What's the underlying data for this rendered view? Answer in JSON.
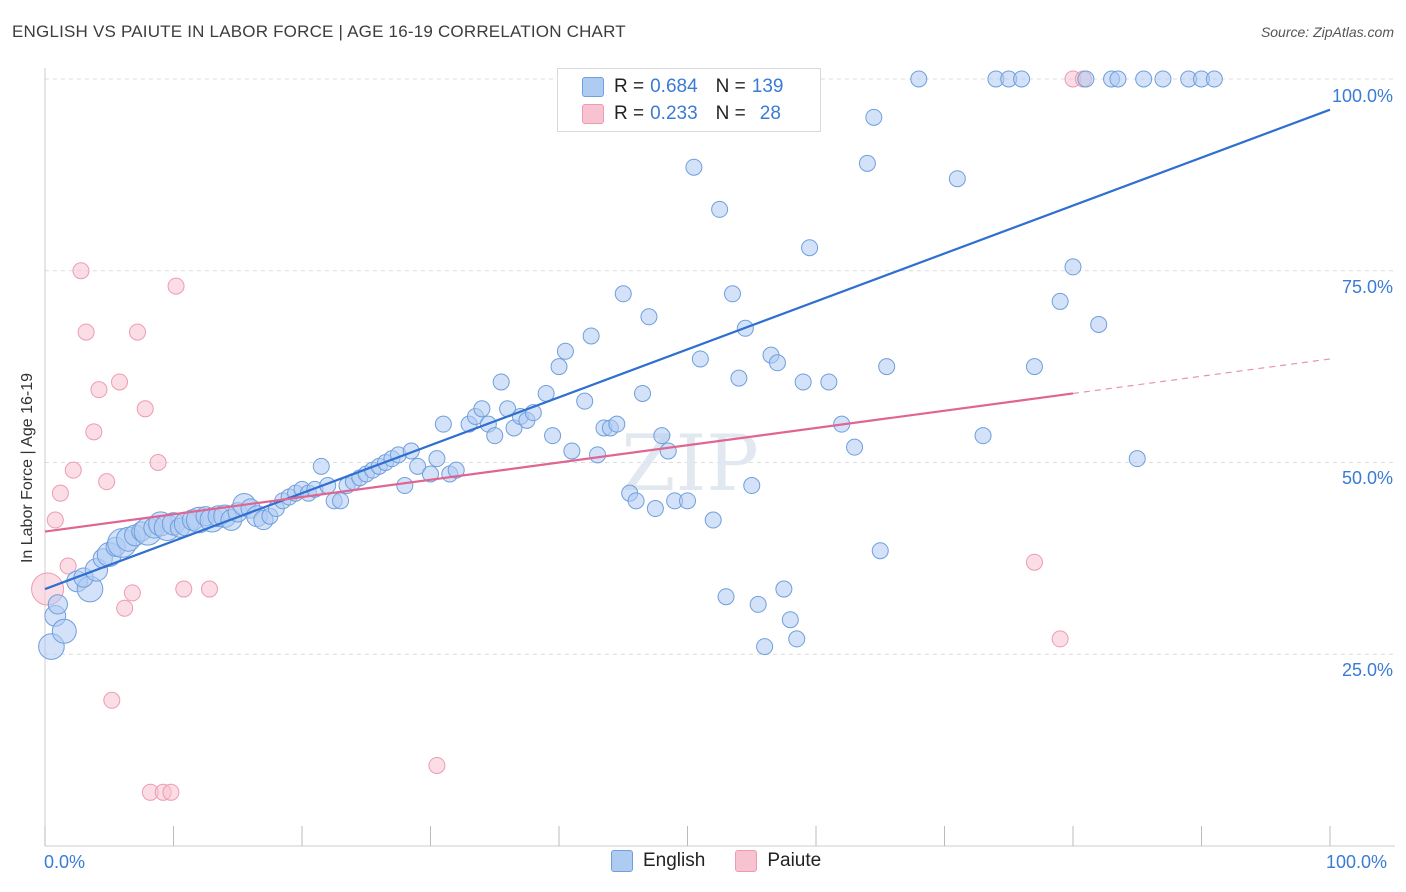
{
  "title": "ENGLISH VS PAIUTE IN LABOR FORCE | AGE 16-19 CORRELATION CHART",
  "source": "Source: ZipAtlas.com",
  "watermark": "ZIPatlas",
  "legend": {
    "rows": [
      {
        "series": "English",
        "r_label": "R =",
        "r": "0.684",
        "n_label": "N =",
        "n": "139"
      },
      {
        "series": "Paiute",
        "r_label": "R =",
        "r": "0.233",
        "n_label": "N =",
        "n": "28"
      }
    ]
  },
  "colors": {
    "english_fill": "#aecbf2",
    "english_stroke": "#6f9fdc",
    "english_line": "#2f6fd0",
    "paiute_fill": "#f8c3d0",
    "paiute_stroke": "#ee9bb2",
    "paiute_line": "#e06592",
    "accent_text": "#3a7bd5"
  },
  "chart_data": {
    "type": "scatter",
    "title": "ENGLISH VS PAIUTE IN LABOR FORCE | AGE 16-19 CORRELATION CHART",
    "xlabel": "",
    "ylabel": "In Labor Force | Age 16-19",
    "xlim": [
      0,
      100
    ],
    "ylim": [
      0,
      100
    ],
    "x_tick_labels": [
      "0.0%",
      "100.0%"
    ],
    "y_tick_labels": [
      "25.0%",
      "50.0%",
      "75.0%",
      "100.0%"
    ],
    "y_ticks": [
      25,
      50,
      75,
      100
    ],
    "grid": true,
    "series": [
      {
        "name": "English",
        "r": 0.684,
        "n": 139,
        "trend": {
          "x0": 0,
          "y0": 33.5,
          "x1": 100,
          "y1": 96
        },
        "points": [
          [
            0.5,
            26,
            1.6
          ],
          [
            0.8,
            30,
            1.3
          ],
          [
            1,
            31.5,
            1.2
          ],
          [
            1.5,
            28,
            1.5
          ],
          [
            2.5,
            34.5,
            1.3
          ],
          [
            3.5,
            33.5,
            1.6
          ],
          [
            3,
            35,
            1.2
          ],
          [
            4,
            36,
            1.4
          ],
          [
            4.5,
            37.5,
            1.2
          ],
          [
            5,
            38,
            1.5
          ],
          [
            5.5,
            39,
            1.2
          ],
          [
            6,
            39.5,
            1.8
          ],
          [
            6.5,
            40,
            1.5
          ],
          [
            7,
            40.5,
            1.3
          ],
          [
            7.5,
            41,
            1.2
          ],
          [
            8,
            41,
            1.7
          ],
          [
            8.5,
            41.5,
            1.3
          ],
          [
            9,
            42,
            1.5
          ],
          [
            9.5,
            41.5,
            1.6
          ],
          [
            10,
            42,
            1.4
          ],
          [
            10.5,
            41.5,
            1.2
          ],
          [
            11,
            42,
            1.5
          ],
          [
            11.5,
            42.5,
            1.3
          ],
          [
            12,
            42.5,
            1.6
          ],
          [
            12.5,
            43,
            1.2
          ],
          [
            13,
            42.5,
            1.5
          ],
          [
            13.5,
            43,
            1.3
          ],
          [
            14,
            43,
            1.4
          ],
          [
            14.5,
            42.5,
            1.3
          ],
          [
            15,
            43.5,
            1.2
          ],
          [
            15.5,
            44.5,
            1.4
          ],
          [
            16,
            44,
            1.2
          ],
          [
            16.5,
            43,
            1.3
          ],
          [
            17,
            42.5,
            1.2
          ],
          [
            17.5,
            43,
            1
          ],
          [
            18,
            44,
            1
          ],
          [
            18.5,
            45,
            1
          ],
          [
            19,
            45.5,
            1
          ],
          [
            19.5,
            46,
            1
          ],
          [
            20,
            46.5,
            1
          ],
          [
            20.5,
            46,
            1
          ],
          [
            21,
            46.5,
            1
          ],
          [
            21.5,
            49.5,
            1
          ],
          [
            22,
            47,
            1
          ],
          [
            22.5,
            45,
            1
          ],
          [
            23,
            45,
            1
          ],
          [
            23.5,
            47,
            1
          ],
          [
            24,
            47.5,
            1
          ],
          [
            24.5,
            48,
            1
          ],
          [
            25,
            48.5,
            1
          ],
          [
            25.5,
            49,
            1
          ],
          [
            26,
            49.5,
            1
          ],
          [
            26.5,
            50,
            1
          ],
          [
            27,
            50.5,
            1
          ],
          [
            27.5,
            51,
            1
          ],
          [
            28,
            47,
            1
          ],
          [
            28.5,
            51.5,
            1
          ],
          [
            29,
            49.5,
            1
          ],
          [
            30,
            48.5,
            1
          ],
          [
            30.5,
            50.5,
            1
          ],
          [
            31,
            55,
            1
          ],
          [
            31.5,
            48.5,
            1
          ],
          [
            32,
            49,
            1
          ],
          [
            33,
            55,
            1
          ],
          [
            33.5,
            56,
            1
          ],
          [
            34,
            57,
            1
          ],
          [
            34.5,
            55,
            1
          ],
          [
            35,
            53.5,
            1
          ],
          [
            35.5,
            60.5,
            1
          ],
          [
            36,
            57,
            1
          ],
          [
            36.5,
            54.5,
            1
          ],
          [
            37,
            56,
            1
          ],
          [
            37.5,
            55.5,
            1
          ],
          [
            38,
            56.5,
            1
          ],
          [
            39,
            59,
            1
          ],
          [
            39.5,
            53.5,
            1
          ],
          [
            40,
            62.5,
            1
          ],
          [
            40.5,
            64.5,
            1
          ],
          [
            41,
            51.5,
            1
          ],
          [
            42,
            58,
            1
          ],
          [
            42.5,
            66.5,
            1
          ],
          [
            43,
            51,
            1
          ],
          [
            43.5,
            54.5,
            1
          ],
          [
            44,
            54.5,
            1
          ],
          [
            44.5,
            55,
            1
          ],
          [
            45,
            72,
            1
          ],
          [
            45.5,
            46,
            1
          ],
          [
            46,
            45,
            1
          ],
          [
            46.5,
            59,
            1
          ],
          [
            47,
            69,
            1
          ],
          [
            47.5,
            44,
            1
          ],
          [
            48,
            53.5,
            1
          ],
          [
            48.5,
            51.5,
            1
          ],
          [
            49,
            45,
            1
          ],
          [
            50,
            45,
            1
          ],
          [
            50.5,
            88.5,
            1
          ],
          [
            51,
            63.5,
            1
          ],
          [
            52,
            42.5,
            1
          ],
          [
            52.5,
            83,
            1
          ],
          [
            53,
            32.5,
            1
          ],
          [
            53.5,
            72,
            1
          ],
          [
            54,
            61,
            1
          ],
          [
            54.5,
            67.5,
            1
          ],
          [
            55,
            47,
            1
          ],
          [
            55.5,
            31.5,
            1
          ],
          [
            56,
            26,
            1
          ],
          [
            56.5,
            64,
            1
          ],
          [
            57,
            63,
            1
          ],
          [
            57.5,
            33.5,
            1
          ],
          [
            58,
            29.5,
            1
          ],
          [
            58.5,
            27,
            1
          ],
          [
            59,
            60.5,
            1
          ],
          [
            59.5,
            78,
            1
          ],
          [
            61,
            60.5,
            1
          ],
          [
            62,
            55,
            1
          ],
          [
            63,
            52,
            1
          ],
          [
            64,
            89,
            1
          ],
          [
            64.5,
            95,
            1
          ],
          [
            65,
            38.5,
            1
          ],
          [
            65.5,
            62.5,
            1
          ],
          [
            68,
            100,
            1
          ],
          [
            71,
            87,
            1
          ],
          [
            73,
            53.5,
            1
          ],
          [
            74,
            100,
            1
          ],
          [
            75,
            100,
            1
          ],
          [
            76,
            100,
            1
          ],
          [
            77,
            62.5,
            1
          ],
          [
            79,
            71,
            1
          ],
          [
            80,
            75.5,
            1
          ],
          [
            81,
            100,
            1
          ],
          [
            82,
            68,
            1
          ],
          [
            83,
            100,
            1
          ],
          [
            83.5,
            100,
            1
          ],
          [
            85,
            50.5,
            1
          ],
          [
            85.5,
            100,
            1
          ],
          [
            87,
            100,
            1
          ],
          [
            89,
            100,
            1
          ],
          [
            90,
            100,
            1
          ],
          [
            91,
            100,
            1
          ]
        ]
      },
      {
        "name": "Paiute",
        "r": 0.233,
        "n": 28,
        "trend": {
          "x0": 0,
          "y0": 41,
          "x1": 80,
          "y1": 59,
          "dash_to_x": 100,
          "dash_to_y": 63.5
        },
        "points": [
          [
            0.2,
            33.5,
            2
          ],
          [
            0.8,
            42.5,
            1
          ],
          [
            1.2,
            46,
            1
          ],
          [
            1.8,
            36.5,
            1
          ],
          [
            2.2,
            49,
            1
          ],
          [
            2.8,
            75,
            1
          ],
          [
            3.2,
            67,
            1
          ],
          [
            3.8,
            54,
            1
          ],
          [
            4.2,
            59.5,
            1
          ],
          [
            4.8,
            47.5,
            1
          ],
          [
            5.2,
            19,
            1
          ],
          [
            5.8,
            60.5,
            1
          ],
          [
            6.2,
            31,
            1
          ],
          [
            6.8,
            33,
            1
          ],
          [
            7.2,
            67,
            1
          ],
          [
            7.8,
            57,
            1
          ],
          [
            8.2,
            7,
            1
          ],
          [
            8.8,
            50,
            1
          ],
          [
            9.2,
            7,
            1
          ],
          [
            9.8,
            7,
            1
          ],
          [
            10.2,
            73,
            1
          ],
          [
            10.8,
            33.5,
            1
          ],
          [
            12.8,
            33.5,
            1
          ],
          [
            30.5,
            10.5,
            1
          ],
          [
            77,
            37,
            1
          ],
          [
            79,
            27,
            1
          ],
          [
            80,
            100,
            1
          ],
          [
            80.8,
            100,
            1
          ]
        ]
      }
    ]
  }
}
